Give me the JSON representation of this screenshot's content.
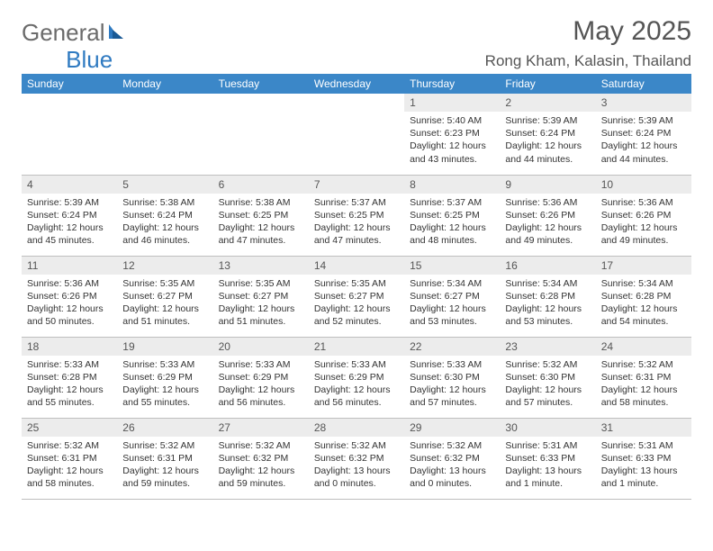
{
  "brand": {
    "part1": "General",
    "part2": "Blue"
  },
  "title": "May 2025",
  "location": "Rong Kham, Kalasin, Thailand",
  "colors": {
    "header_bg": "#3b87c8",
    "header_text": "#ffffff",
    "daynum_bg": "#ececec",
    "divider": "#bfbfbf",
    "brand_gray": "#6b6b6b",
    "brand_blue": "#2f7ac1"
  },
  "weekdays": [
    "Sunday",
    "Monday",
    "Tuesday",
    "Wednesday",
    "Thursday",
    "Friday",
    "Saturday"
  ],
  "weeks": [
    [
      null,
      null,
      null,
      null,
      {
        "n": "1",
        "sr": "5:40 AM",
        "ss": "6:23 PM",
        "dl": "12 hours and 43 minutes."
      },
      {
        "n": "2",
        "sr": "5:39 AM",
        "ss": "6:24 PM",
        "dl": "12 hours and 44 minutes."
      },
      {
        "n": "3",
        "sr": "5:39 AM",
        "ss": "6:24 PM",
        "dl": "12 hours and 44 minutes."
      }
    ],
    [
      {
        "n": "4",
        "sr": "5:39 AM",
        "ss": "6:24 PM",
        "dl": "12 hours and 45 minutes."
      },
      {
        "n": "5",
        "sr": "5:38 AM",
        "ss": "6:24 PM",
        "dl": "12 hours and 46 minutes."
      },
      {
        "n": "6",
        "sr": "5:38 AM",
        "ss": "6:25 PM",
        "dl": "12 hours and 47 minutes."
      },
      {
        "n": "7",
        "sr": "5:37 AM",
        "ss": "6:25 PM",
        "dl": "12 hours and 47 minutes."
      },
      {
        "n": "8",
        "sr": "5:37 AM",
        "ss": "6:25 PM",
        "dl": "12 hours and 48 minutes."
      },
      {
        "n": "9",
        "sr": "5:36 AM",
        "ss": "6:26 PM",
        "dl": "12 hours and 49 minutes."
      },
      {
        "n": "10",
        "sr": "5:36 AM",
        "ss": "6:26 PM",
        "dl": "12 hours and 49 minutes."
      }
    ],
    [
      {
        "n": "11",
        "sr": "5:36 AM",
        "ss": "6:26 PM",
        "dl": "12 hours and 50 minutes."
      },
      {
        "n": "12",
        "sr": "5:35 AM",
        "ss": "6:27 PM",
        "dl": "12 hours and 51 minutes."
      },
      {
        "n": "13",
        "sr": "5:35 AM",
        "ss": "6:27 PM",
        "dl": "12 hours and 51 minutes."
      },
      {
        "n": "14",
        "sr": "5:35 AM",
        "ss": "6:27 PM",
        "dl": "12 hours and 52 minutes."
      },
      {
        "n": "15",
        "sr": "5:34 AM",
        "ss": "6:27 PM",
        "dl": "12 hours and 53 minutes."
      },
      {
        "n": "16",
        "sr": "5:34 AM",
        "ss": "6:28 PM",
        "dl": "12 hours and 53 minutes."
      },
      {
        "n": "17",
        "sr": "5:34 AM",
        "ss": "6:28 PM",
        "dl": "12 hours and 54 minutes."
      }
    ],
    [
      {
        "n": "18",
        "sr": "5:33 AM",
        "ss": "6:28 PM",
        "dl": "12 hours and 55 minutes."
      },
      {
        "n": "19",
        "sr": "5:33 AM",
        "ss": "6:29 PM",
        "dl": "12 hours and 55 minutes."
      },
      {
        "n": "20",
        "sr": "5:33 AM",
        "ss": "6:29 PM",
        "dl": "12 hours and 56 minutes."
      },
      {
        "n": "21",
        "sr": "5:33 AM",
        "ss": "6:29 PM",
        "dl": "12 hours and 56 minutes."
      },
      {
        "n": "22",
        "sr": "5:33 AM",
        "ss": "6:30 PM",
        "dl": "12 hours and 57 minutes."
      },
      {
        "n": "23",
        "sr": "5:32 AM",
        "ss": "6:30 PM",
        "dl": "12 hours and 57 minutes."
      },
      {
        "n": "24",
        "sr": "5:32 AM",
        "ss": "6:31 PM",
        "dl": "12 hours and 58 minutes."
      }
    ],
    [
      {
        "n": "25",
        "sr": "5:32 AM",
        "ss": "6:31 PM",
        "dl": "12 hours and 58 minutes."
      },
      {
        "n": "26",
        "sr": "5:32 AM",
        "ss": "6:31 PM",
        "dl": "12 hours and 59 minutes."
      },
      {
        "n": "27",
        "sr": "5:32 AM",
        "ss": "6:32 PM",
        "dl": "12 hours and 59 minutes."
      },
      {
        "n": "28",
        "sr": "5:32 AM",
        "ss": "6:32 PM",
        "dl": "13 hours and 0 minutes."
      },
      {
        "n": "29",
        "sr": "5:32 AM",
        "ss": "6:32 PM",
        "dl": "13 hours and 0 minutes."
      },
      {
        "n": "30",
        "sr": "5:31 AM",
        "ss": "6:33 PM",
        "dl": "13 hours and 1 minute."
      },
      {
        "n": "31",
        "sr": "5:31 AM",
        "ss": "6:33 PM",
        "dl": "13 hours and 1 minute."
      }
    ]
  ],
  "labels": {
    "sunrise": "Sunrise: ",
    "sunset": "Sunset: ",
    "daylight": "Daylight: "
  }
}
